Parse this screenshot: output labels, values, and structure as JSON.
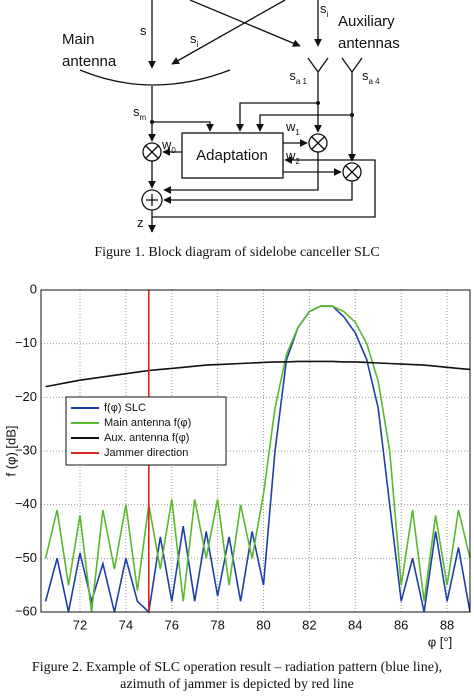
{
  "figure1": {
    "labels": [
      {
        "text": "s"
      },
      {
        "text": "s",
        "sub": "i"
      },
      {
        "text": "s",
        "sub": "i"
      },
      {
        "text": "Main"
      },
      {
        "text": "antenna"
      },
      {
        "text": "Auxiliary"
      },
      {
        "text": "antennas"
      },
      {
        "text": "s",
        "sub": "a 1"
      },
      {
        "text": "s",
        "sub": "a 4"
      },
      {
        "text": "s",
        "sub": "m"
      },
      {
        "text": "w",
        "sub": "0"
      },
      {
        "text": "w",
        "sub": "1"
      },
      {
        "text": "w",
        "sub": "2"
      },
      {
        "text": "Adaptation"
      },
      {
        "text": "z"
      }
    ],
    "caption": "Figure 1.    Block diagram of sidelobe canceller SLC"
  },
  "chart_data": {
    "type": "line",
    "xlabel": "φ [°]",
    "ylabel": "f (φ) [dB]",
    "xlim": [
      70.3,
      89.0
    ],
    "ylim": [
      -60,
      0
    ],
    "xticks": [
      72,
      74,
      76,
      78,
      80,
      82,
      84,
      86,
      88
    ],
    "yticks": [
      0,
      {
        "value": -10,
        "label": "−10"
      },
      {
        "value": -20,
        "label": "−20"
      },
      {
        "value": -30,
        "label": "−30"
      },
      {
        "value": -40,
        "label": "−40"
      },
      {
        "value": -50,
        "label": "−50"
      },
      {
        "value": -60,
        "label": "−60"
      }
    ],
    "grid": true,
    "legend": "upper left",
    "x": [
      70.5,
      71,
      71.5,
      72,
      72.5,
      73,
      73.5,
      74,
      74.5,
      75,
      75.5,
      76,
      76.5,
      77,
      77.5,
      78,
      78.5,
      79,
      79.5,
      80,
      80.5,
      81,
      81.5,
      82,
      82.5,
      83,
      83.5,
      84,
      84.5,
      85,
      85.5,
      86,
      86.5,
      87,
      87.5,
      88,
      88.5,
      89
    ],
    "series": [
      {
        "name": "f(φ) SLC",
        "color": "#1f3fa8",
        "values": [
          -58,
          -50,
          -60,
          -49,
          -58,
          -51,
          -60,
          -50,
          -58,
          -60,
          -46,
          -58,
          -44,
          -58,
          -45,
          -57,
          -46,
          -58,
          -45,
          -55,
          -30,
          -13,
          -7,
          -4,
          -3,
          -3,
          -5,
          -8,
          -13,
          -22,
          -40,
          -58,
          -50,
          -60,
          -45,
          -58,
          -48,
          -60
        ]
      },
      {
        "name": "Main antenna f(φ)",
        "color": "#5ab82e",
        "values": [
          -50,
          -41,
          -55,
          -42,
          -60,
          -41,
          -52,
          -40,
          -56,
          -40,
          -52,
          -39,
          -58,
          -39,
          -50,
          -39,
          -55,
          -40,
          -50,
          -38,
          -22,
          -12,
          -7,
          -4,
          -3,
          -3,
          -4,
          -6,
          -10,
          -17,
          -30,
          -55,
          -41,
          -58,
          -42,
          -55,
          -41,
          -50
        ]
      },
      {
        "name": "Aux. antenna f(φ)",
        "color": "#111111",
        "values": [
          -18,
          -17.6,
          -17.2,
          -16.8,
          -16.5,
          -16.2,
          -15.9,
          -15.6,
          -15.3,
          -15,
          -14.8,
          -14.6,
          -14.4,
          -14.2,
          -14,
          -13.9,
          -13.8,
          -13.7,
          -13.6,
          -13.5,
          -13.4,
          -13.4,
          -13.3,
          -13.3,
          -13.3,
          -13.3,
          -13.4,
          -13.4,
          -13.5,
          -13.6,
          -13.7,
          -13.8,
          -13.9,
          -14,
          -14.2,
          -14.4,
          -14.6,
          -14.8
        ]
      },
      {
        "name": "Jammer direction",
        "color": "#d42a1e",
        "x": [
          75,
          75
        ],
        "values": [
          0,
          -60
        ]
      }
    ],
    "caption": [
      "Figure 2.    Example of SLC operation result – radiation pattern (blue line),",
      "azimuth of jammer is depicted by red line"
    ]
  }
}
